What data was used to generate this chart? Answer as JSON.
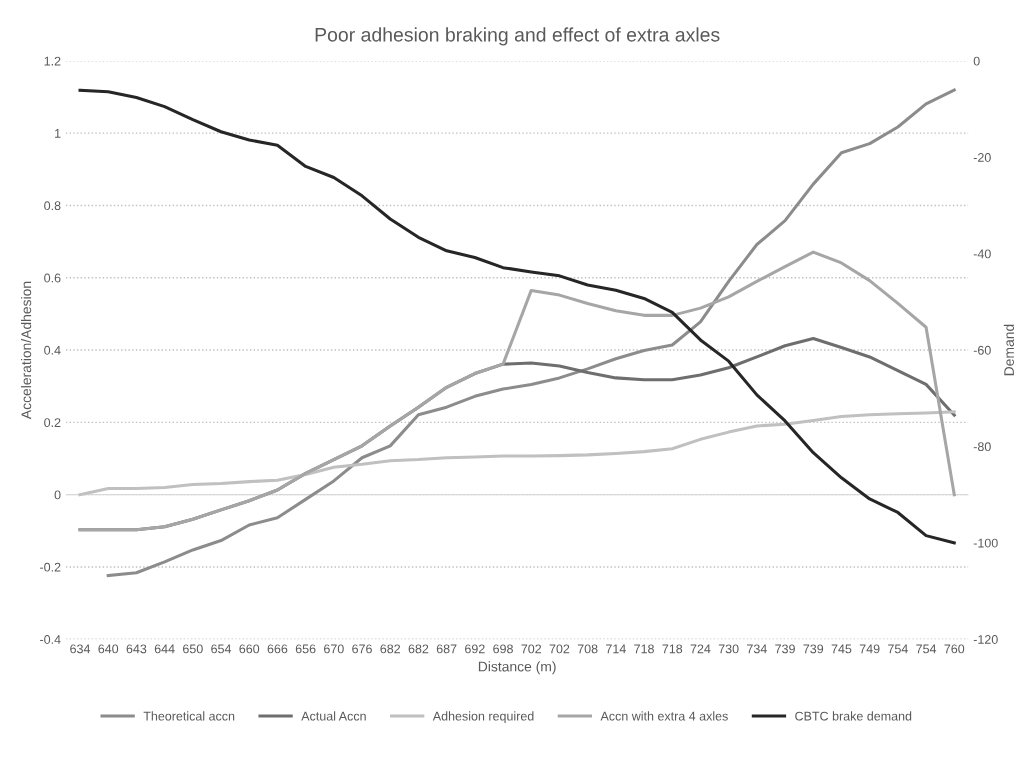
{
  "chart_data": {
    "type": "line",
    "title": "Poor adhesion braking and effect of extra axles",
    "xlabel": "Distance (m)",
    "ylabel": "Acceleration/Adhesion",
    "y2label": "Demand",
    "categories": [
      "634",
      "640",
      "643",
      "644",
      "650",
      "654",
      "660",
      "666",
      "656",
      "670",
      "676",
      "682",
      "682",
      "687",
      "692",
      "698",
      "702",
      "702",
      "708",
      "714",
      "718",
      "718",
      "724",
      "730",
      "734",
      "739",
      "739",
      "745",
      "749",
      "754",
      "754",
      "760"
    ],
    "series": [
      {
        "name": "Theoretical accn",
        "color": "#8c8c8c",
        "values": [
          null,
          -0.224,
          -0.216,
          -0.186,
          -0.153,
          -0.127,
          -0.084,
          -0.064,
          -0.013,
          0.038,
          0.102,
          0.135,
          0.221,
          0.242,
          0.272,
          0.292,
          0.305,
          0.323,
          0.348,
          0.376,
          0.399,
          0.414,
          0.478,
          0.59,
          0.692,
          0.758,
          0.859,
          0.946,
          0.971,
          1.017,
          1.081,
          1.119
        ]
      },
      {
        "name": "Actual Accn",
        "color": "#6e6e6e",
        "values": [
          -0.097,
          -0.097,
          -0.097,
          -0.089,
          -0.068,
          -0.042,
          -0.017,
          0.013,
          0.059,
          0.097,
          0.135,
          0.19,
          0.242,
          0.297,
          0.335,
          0.361,
          0.364,
          0.356,
          0.338,
          0.323,
          0.318,
          0.318,
          0.331,
          0.351,
          0.381,
          0.412,
          0.432,
          0.407,
          0.381,
          0.343,
          0.305,
          0.22
        ]
      },
      {
        "name": "Adhesion required",
        "color": "#c0c0c0",
        "values": [
          0,
          0.017,
          0.017,
          0.02,
          0.028,
          0.031,
          0.036,
          0.04,
          0.056,
          0.076,
          0.084,
          0.094,
          0.097,
          0.102,
          0.104,
          0.107,
          0.107,
          0.108,
          0.11,
          0.114,
          0.119,
          0.127,
          0.153,
          0.173,
          0.19,
          0.195,
          0.205,
          0.216,
          0.221,
          0.224,
          0.226,
          0.229
        ]
      },
      {
        "name": "Accn with extra 4 axles",
        "color": "#a6a6a6",
        "values": [
          -0.097,
          -0.097,
          -0.097,
          -0.089,
          -0.068,
          -0.042,
          -0.017,
          0.013,
          0.059,
          0.097,
          0.135,
          0.19,
          0.242,
          0.297,
          0.335,
          0.361,
          0.565,
          0.552,
          0.529,
          0.509,
          0.496,
          0.496,
          0.516,
          0.547,
          0.59,
          0.631,
          0.671,
          0.641,
          0.592,
          0.529,
          0.463,
          0
        ]
      },
      {
        "name": "CBTC brake demand",
        "color": "#262626",
        "axis": "y2",
        "values": [
          -6.1,
          -6.4,
          -7.6,
          -9.5,
          -12.2,
          -14.7,
          -16.4,
          -17.5,
          -21.9,
          -24.2,
          -28,
          -32.8,
          -36.6,
          -39.4,
          -40.8,
          -42.9,
          -43.8,
          -44.6,
          -46.5,
          -47.6,
          -49.3,
          -52.2,
          -57.9,
          -62.3,
          -69.3,
          -74.7,
          -81.3,
          -86.5,
          -90.9,
          -93.7,
          -98.5,
          -100
        ]
      }
    ],
    "ylim": [
      -0.4,
      1.2
    ],
    "yticks": [
      -0.4,
      -0.2,
      0,
      0.2,
      0.4,
      0.6,
      0.8,
      1,
      1.2
    ],
    "y2lim": [
      -120,
      0
    ],
    "y2ticks": [
      -120,
      -100,
      -80,
      -60,
      -40,
      -20,
      0
    ],
    "grid": "y",
    "legend": "bottom",
    "marker": "none",
    "line_style": "solid"
  }
}
